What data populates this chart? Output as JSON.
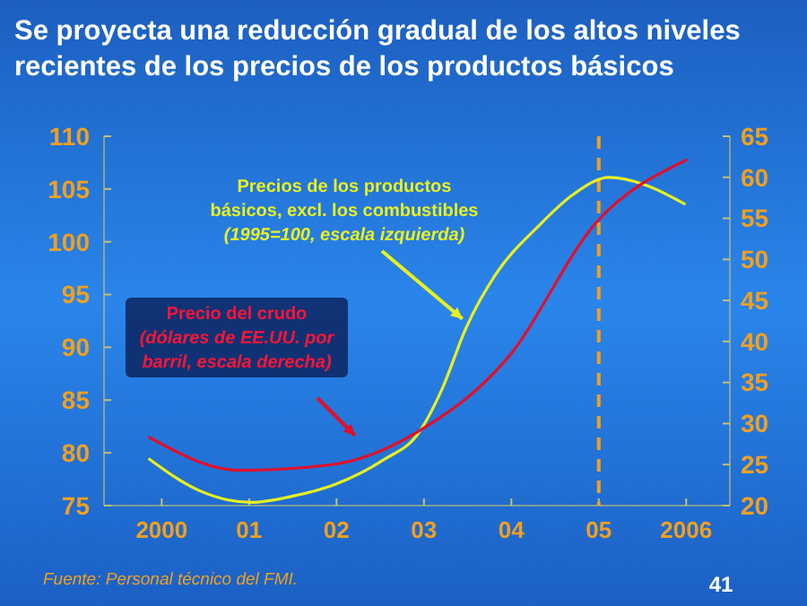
{
  "chart_data": {
    "type": "line",
    "title": "Se proyecta una reducción gradual de los altos niveles recientes de los precios de los productos básicos",
    "xlim": [
      1999.34,
      2006.5
    ],
    "xticks": [
      {
        "value": 2000,
        "label": "2000"
      },
      {
        "value": 2001,
        "label": "01"
      },
      {
        "value": 2002,
        "label": "02"
      },
      {
        "value": 2003,
        "label": "03"
      },
      {
        "value": 2004,
        "label": "04"
      },
      {
        "value": 2005,
        "label": "05"
      },
      {
        "value": 2006,
        "label": "2006"
      }
    ],
    "ylim": [
      75,
      110
    ],
    "yticks": [
      75,
      80,
      85,
      90,
      95,
      100,
      105,
      110
    ],
    "y2lim": [
      20,
      65
    ],
    "y2ticks": [
      20,
      25,
      30,
      35,
      40,
      45,
      50,
      55,
      60,
      65
    ],
    "series": [
      {
        "color": "#e8f020",
        "axis": "y",
        "x": [
          1999.86,
          2000.41,
          2001.02,
          2001.5,
          2001.98,
          2002.53,
          2002.94,
          2003.21,
          2003.48,
          2003.82,
          2004.3,
          2004.71,
          2005.12,
          2005.53,
          2005.98
        ],
        "values": [
          79.4,
          76.5,
          75.3,
          75.9,
          77,
          79.3,
          81.9,
          86.1,
          91.8,
          96.9,
          101.4,
          104.5,
          106.1,
          105.4,
          103.6
        ]
      },
      {
        "color": "#e0102a",
        "axis": "y2",
        "x": [
          1999.86,
          2000.89,
          2001.95,
          2002.93,
          2003.95,
          2004.98,
          2006.0
        ],
        "values": [
          28.3,
          24.3,
          25,
          29,
          37.9,
          54.6,
          62.1
        ]
      }
    ],
    "ref_lines": [
      {
        "axis": "x",
        "value": 2005,
        "color": "#f0a020",
        "line_style": "dashed"
      }
    ],
    "annotations": [
      {
        "text": "Precios de los productos básicos, excl. los combustibles (1995=100, escala izquierda)",
        "x": 2003.44,
        "y": 92.7
      },
      "Precio del crudo (dólares de EE.UU. por barril, escala derecha)",
      "Fuente: Personal técnico del FMI.",
      "41"
    ],
    "grid": false,
    "marker": "none",
    "line_style": "solid"
  }
}
